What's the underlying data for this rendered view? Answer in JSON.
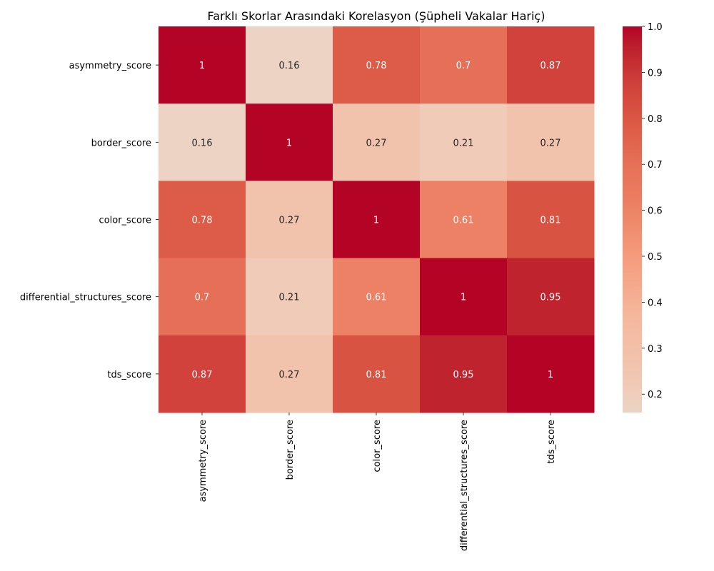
{
  "chart_data": {
    "type": "heatmap",
    "title": "Farklı Skorlar Arasındaki Korelasyon (Şüpheli Vakalar Hariç)",
    "xlabel": "",
    "ylabel": "",
    "rows": [
      "asymmetry_score",
      "border_score",
      "color_score",
      "differential_structures_score",
      "tds_score"
    ],
    "columns": [
      "asymmetry_score",
      "border_score",
      "color_score",
      "differential_structures_score",
      "tds_score"
    ],
    "values": [
      [
        1,
        0.16,
        0.78,
        0.7,
        0.87
      ],
      [
        0.16,
        1,
        0.27,
        0.21,
        0.27
      ],
      [
        0.78,
        0.27,
        1,
        0.61,
        0.81
      ],
      [
        0.7,
        0.21,
        0.61,
        1,
        0.95
      ],
      [
        0.87,
        0.27,
        0.81,
        0.95,
        1
      ]
    ],
    "annotations": [
      [
        "1",
        "0.16",
        "0.78",
        "0.7",
        "0.87"
      ],
      [
        "0.16",
        "1",
        "0.27",
        "0.21",
        "0.27"
      ],
      [
        "0.78",
        "0.27",
        "1",
        "0.61",
        "0.81"
      ],
      [
        "0.7",
        "0.21",
        "0.61",
        "1",
        "0.95"
      ],
      [
        "0.87",
        "0.27",
        "0.81",
        "0.95",
        "1"
      ]
    ],
    "colormap": "coolwarm (upper half)",
    "colorbar": {
      "range": [
        0.16,
        1.0
      ],
      "ticks": [
        0.2,
        0.3,
        0.4,
        0.5,
        0.6,
        0.7,
        0.8,
        0.9,
        1.0
      ],
      "tick_labels": [
        "0.2",
        "0.3",
        "0.4",
        "0.5",
        "0.6",
        "0.7",
        "0.8",
        "0.9",
        "1.0"
      ]
    }
  }
}
